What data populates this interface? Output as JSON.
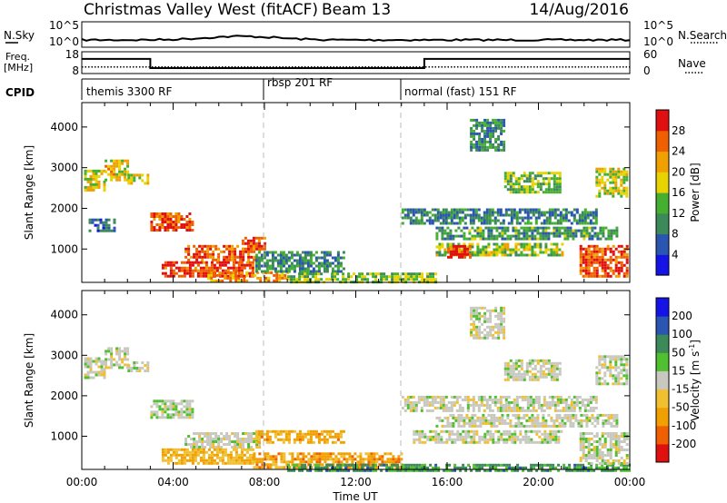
{
  "header": {
    "title": "Christmas Valley West (fitACF)",
    "beam": "Beam 13",
    "date": "14/Aug/2016"
  },
  "nsky_panel": {
    "left_label": "N.Sky",
    "left_ticks": [
      "10^5",
      "10^0"
    ],
    "right_ticks": [
      "10^5",
      "10^0"
    ],
    "right_label": "N.Search"
  },
  "freq_panel": {
    "left_label_1": "Freq.",
    "left_label_2": "[MHz]",
    "left_ticks": [
      "18",
      "8"
    ],
    "right_ticks": [
      "60",
      "0"
    ],
    "right_label": "Nave",
    "freq_steps": [
      {
        "start": 0.0,
        "end": 3.0,
        "value": 14.7
      },
      {
        "start": 3.0,
        "end": 15.0,
        "value": 10.5
      },
      {
        "start": 15.0,
        "end": 24.0,
        "value": 14.7
      }
    ],
    "nave_level": 18
  },
  "cpid_panel": {
    "label": "CPID",
    "segments": [
      {
        "start": 0.0,
        "label": "themis 3300 RF"
      },
      {
        "start": 8.0,
        "label": "rbsp 201 RF"
      },
      {
        "start": 14.0,
        "label": "normal (fast) 151 RF"
      }
    ]
  },
  "chart_data": [
    {
      "type": "heatmap",
      "name": "power",
      "ylabel": "Slant Range [km]",
      "yticks": [
        "1000",
        "2000",
        "3000",
        "4000"
      ],
      "ylim": [
        180,
        4600
      ],
      "xlim": [
        0,
        24
      ],
      "colorbar": {
        "label": "Power [dB]",
        "ticks": [
          "4",
          "8",
          "12",
          "16",
          "20",
          "24",
          "28"
        ],
        "colors": [
          "#1414e6",
          "#2a55b0",
          "#3c8a5a",
          "#45b030",
          "#e8d200",
          "#f0a000",
          "#f06000",
          "#e01010"
        ]
      },
      "regions": [
        {
          "t0": 0.1,
          "t1": 1.0,
          "r0": 2450,
          "r1": 2950,
          "level": 0.55
        },
        {
          "t0": 1.0,
          "t1": 2.0,
          "r0": 2700,
          "r1": 3200,
          "level": 0.6
        },
        {
          "t0": 2.0,
          "t1": 2.9,
          "r0": 2600,
          "r1": 2850,
          "level": 0.55
        },
        {
          "t0": 0.3,
          "t1": 1.4,
          "r0": 1450,
          "r1": 1750,
          "level": 0.2
        },
        {
          "t0": 3.0,
          "t1": 4.9,
          "r0": 1450,
          "r1": 1900,
          "level": 0.85
        },
        {
          "t0": 4.5,
          "t1": 7.8,
          "r0": 750,
          "r1": 1100,
          "level": 0.8
        },
        {
          "t0": 3.5,
          "t1": 7.5,
          "r0": 350,
          "r1": 700,
          "level": 0.9
        },
        {
          "t0": 5.5,
          "t1": 9.0,
          "r0": 200,
          "r1": 450,
          "level": 0.7
        },
        {
          "t0": 7.0,
          "t1": 8.0,
          "r0": 1000,
          "r1": 1300,
          "level": 0.85
        },
        {
          "t0": 7.6,
          "t1": 11.5,
          "r0": 450,
          "r1": 950,
          "level": 0.3
        },
        {
          "t0": 9.0,
          "t1": 15.5,
          "r0": 200,
          "r1": 420,
          "level": 0.45
        },
        {
          "t0": 14.0,
          "t1": 22.5,
          "r0": 1600,
          "r1": 2000,
          "level": 0.3
        },
        {
          "t0": 15.5,
          "t1": 23.5,
          "r0": 1250,
          "r1": 1550,
          "level": 0.35
        },
        {
          "t0": 15.5,
          "t1": 21.0,
          "r0": 850,
          "r1": 1150,
          "level": 0.5
        },
        {
          "t0": 16.0,
          "t1": 17.0,
          "r0": 800,
          "r1": 1100,
          "level": 0.9
        },
        {
          "t0": 21.8,
          "t1": 23.9,
          "r0": 300,
          "r1": 1100,
          "level": 0.85
        },
        {
          "t0": 18.5,
          "t1": 21.0,
          "r0": 2400,
          "r1": 2900,
          "level": 0.45
        },
        {
          "t0": 22.5,
          "t1": 23.9,
          "r0": 2300,
          "r1": 3000,
          "level": 0.55
        },
        {
          "t0": 17.0,
          "t1": 18.5,
          "r0": 3400,
          "r1": 4200,
          "level": 0.3
        }
      ]
    },
    {
      "type": "heatmap",
      "name": "velocity",
      "ylabel": "Slant Range [km]",
      "yticks": [
        "1000",
        "2000",
        "3000",
        "4000"
      ],
      "ylim": [
        180,
        4600
      ],
      "xlim": [
        0,
        24
      ],
      "xticks": [
        "00:00",
        "04:00",
        "08:00",
        "12:00",
        "16:00",
        "20:00",
        "00:00"
      ],
      "xlabel": "Time UT",
      "colorbar": {
        "label": "Velocity [m s",
        "label_sup": "-1",
        "label_end": "]",
        "ticks": [
          "-200",
          "-100",
          "-50",
          "-15",
          "15",
          "50",
          "100",
          "200"
        ],
        "colors": [
          "#e01010",
          "#f06000",
          "#f0a000",
          "#f0c030",
          "#c8c8c0",
          "#50c030",
          "#3c8a5a",
          "#2a55b0",
          "#1414e6"
        ]
      },
      "regions": [
        {
          "t0": 0.1,
          "t1": 1.0,
          "r0": 2450,
          "r1": 2950,
          "level": 0.5
        },
        {
          "t0": 1.0,
          "t1": 2.0,
          "r0": 2700,
          "r1": 3200,
          "level": 0.5
        },
        {
          "t0": 2.0,
          "t1": 2.9,
          "r0": 2600,
          "r1": 2850,
          "level": 0.5
        },
        {
          "t0": 3.0,
          "t1": 4.9,
          "r0": 1450,
          "r1": 1900,
          "level": 0.52
        },
        {
          "t0": 4.5,
          "t1": 7.8,
          "r0": 750,
          "r1": 1100,
          "level": 0.5
        },
        {
          "t0": 3.5,
          "t1": 7.5,
          "r0": 350,
          "r1": 700,
          "level": 0.35
        },
        {
          "t0": 7.6,
          "t1": 11.5,
          "r0": 850,
          "r1": 1150,
          "level": 0.3
        },
        {
          "t0": 7.5,
          "t1": 14.0,
          "r0": 250,
          "r1": 600,
          "level": 0.28
        },
        {
          "t0": 9.0,
          "t1": 24.0,
          "r0": 180,
          "r1": 320,
          "level": 0.7
        },
        {
          "t0": 14.0,
          "t1": 22.5,
          "r0": 1600,
          "r1": 2000,
          "level": 0.5
        },
        {
          "t0": 15.5,
          "t1": 23.5,
          "r0": 1250,
          "r1": 1550,
          "level": 0.5
        },
        {
          "t0": 14.5,
          "t1": 21.0,
          "r0": 850,
          "r1": 1150,
          "level": 0.5
        },
        {
          "t0": 21.8,
          "t1": 23.9,
          "r0": 300,
          "r1": 1100,
          "level": 0.5
        },
        {
          "t0": 18.5,
          "t1": 21.0,
          "r0": 2400,
          "r1": 2900,
          "level": 0.5
        },
        {
          "t0": 22.5,
          "t1": 23.9,
          "r0": 2300,
          "r1": 3000,
          "level": 0.5
        },
        {
          "t0": 17.0,
          "t1": 18.5,
          "r0": 3400,
          "r1": 4200,
          "level": 0.5
        }
      ]
    }
  ]
}
